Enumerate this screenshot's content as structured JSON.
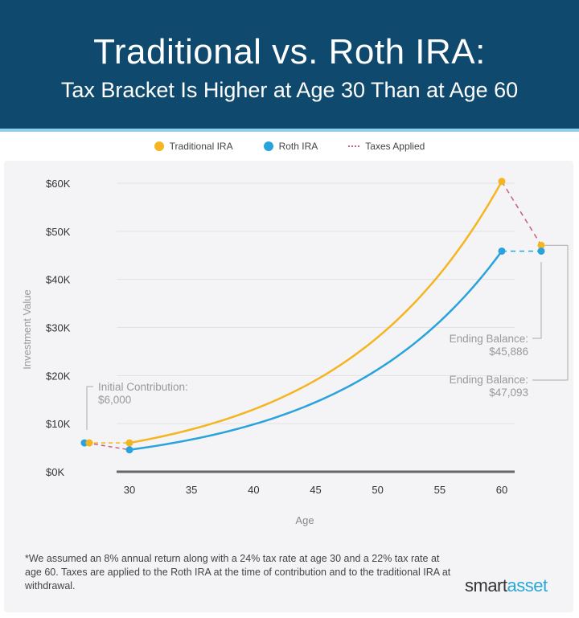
{
  "header": {
    "title": "Traditional vs. Roth IRA:",
    "subtitle": "Tax Bracket Is Higher at Age 30 Than at Age 60"
  },
  "colors": {
    "traditional": "#f4b520",
    "roth": "#29a3dc",
    "taxes": "#c9607f",
    "header_bg": "#0f4a6e"
  },
  "chart_data": {
    "type": "line",
    "xlabel": "Age",
    "ylabel": "Investment Value",
    "xlim": [
      30,
      60
    ],
    "ylim": [
      0,
      60000
    ],
    "x_ticks": [
      "30",
      "35",
      "40",
      "45",
      "50",
      "55",
      "60"
    ],
    "y_ticks": [
      "$0K",
      "$10K",
      "$20K",
      "$30K",
      "$40K",
      "$50K",
      "$60K"
    ],
    "legend": {
      "placement": "top",
      "items": [
        "Traditional IRA",
        "Roth IRA",
        "Taxes Applied"
      ]
    },
    "series": [
      {
        "name": "Traditional IRA",
        "start_value": 6000,
        "annual_return": 0.08,
        "value_at_30": 6000,
        "value_at_60": 60376,
        "after_tax": 47093
      },
      {
        "name": "Roth IRA",
        "start_value": 6000,
        "annual_return": 0.08,
        "value_at_30": 4560,
        "value_at_60": 45886,
        "after_tax": 45886
      }
    ],
    "annotations": [
      {
        "label": "Initial Contribution:",
        "value": "$6,000"
      },
      {
        "label": "Ending Balance:",
        "value": "$45,886"
      },
      {
        "label": "Ending Balance:",
        "value": "$47,093"
      }
    ]
  },
  "footnote": "*We assumed an 8% annual return along with a 24% tax rate at age 30 and a 22% tax rate at age 60. Taxes are applied to the Roth IRA at the time of contribution and to the traditional IRA at withdrawal.",
  "logo": {
    "part1": "smart",
    "part2": "asset"
  }
}
